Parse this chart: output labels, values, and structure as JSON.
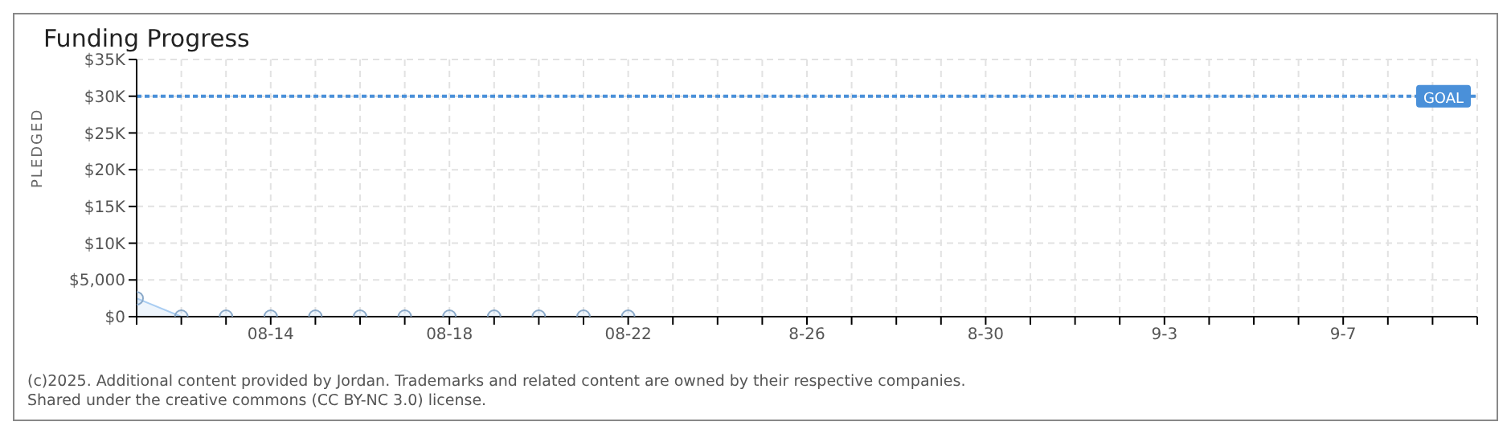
{
  "chart_data": {
    "type": "area",
    "title": "Funding Progress",
    "ylabel": "PLEDGED",
    "x": [
      "--08-11",
      "--08-12",
      "--08-13",
      "--08-14",
      "--08-15",
      "--08-16",
      "--08-17",
      "--08-18",
      "--08-19",
      "--08-20",
      "--08-21",
      "--08-22"
    ],
    "series": [
      {
        "color": "#a9cdf2",
        "values": [
          2500,
          0,
          0,
          0,
          0,
          0,
          0,
          0,
          0,
          0,
          0,
          0
        ]
      }
    ],
    "xlim": [
      "--08-11",
      "--09-10"
    ],
    "xticks": [
      {
        "value": "--08-11",
        "label": null
      },
      {
        "value": "--08-12",
        "label": null
      },
      {
        "value": "--08-13",
        "label": null
      },
      {
        "value": "--08-14",
        "label": "08-14"
      },
      {
        "value": "--08-15",
        "label": null
      },
      {
        "value": "--08-16",
        "label": null
      },
      {
        "value": "--08-17",
        "label": null
      },
      {
        "value": "--08-18",
        "label": "08-18"
      },
      {
        "value": "--08-19",
        "label": null
      },
      {
        "value": "--08-20",
        "label": null
      },
      {
        "value": "--08-21",
        "label": null
      },
      {
        "value": "--08-22",
        "label": "08-22"
      },
      {
        "value": "--08-23",
        "label": null
      },
      {
        "value": "--08-24",
        "label": null
      },
      {
        "value": "--08-25",
        "label": null
      },
      {
        "value": "--08-26",
        "label": "8-26"
      },
      {
        "value": "--08-27",
        "label": null
      },
      {
        "value": "--08-28",
        "label": null
      },
      {
        "value": "--08-29",
        "label": null
      },
      {
        "value": "--08-30",
        "label": "8-30"
      },
      {
        "value": "--08-31",
        "label": null
      },
      {
        "value": "--09-01",
        "label": null
      },
      {
        "value": "--09-02",
        "label": null
      },
      {
        "value": "--09-03",
        "label": "9-3"
      },
      {
        "value": "--09-04",
        "label": null
      },
      {
        "value": "--09-05",
        "label": null
      },
      {
        "value": "--09-06",
        "label": null
      },
      {
        "value": "--09-07",
        "label": "9-7"
      },
      {
        "value": "--09-08",
        "label": null
      },
      {
        "value": "--09-09",
        "label": null
      },
      {
        "value": "--09-10",
        "label": null
      }
    ],
    "ylim": [
      0,
      35000
    ],
    "yticks": [
      {
        "value": 0,
        "label": "$0"
      },
      {
        "value": 5000,
        "label": "$5,000"
      },
      {
        "value": 10000,
        "label": "$10K"
      },
      {
        "value": 15000,
        "label": "$15K"
      },
      {
        "value": 20000,
        "label": "$20K"
      },
      {
        "value": 25000,
        "label": "$25K"
      },
      {
        "value": 30000,
        "label": "$30K"
      },
      {
        "value": 35000,
        "label": "$35K"
      }
    ],
    "ref_lines": [
      {
        "axis": "y",
        "value": 30000,
        "label": "GOAL",
        "color": "#4a90d9",
        "line_style": "dotted"
      }
    ],
    "grid": true,
    "marker": "circle",
    "annotations": [
      "(c)2025. Additional content provided by Jordan. Trademarks and related content are owned by their respective companies.",
      "Shared under the creative commons (CC BY-NC 3.0) license."
    ]
  }
}
